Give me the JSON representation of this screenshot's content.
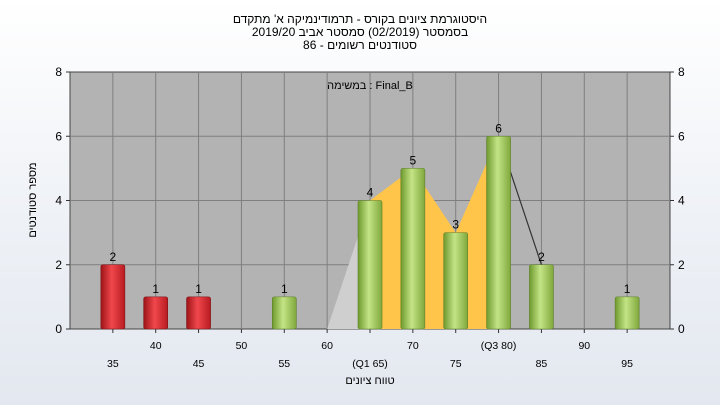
{
  "header": {
    "title_line1": "היסטוגרמת ציונים בקורס - תרמודינמיקה א' מתקדם",
    "title_line2": "בסמסטר  (02/2019)  סמסטר אביב 2019/20",
    "title_line3": "סטודנטים רשומים - 86"
  },
  "chart_data": {
    "type": "bar",
    "title": "היסטוגרמת ציונים בקורס - תרמודינמיקה א' מתקדם",
    "xlabel": "טווח ציונים",
    "ylabel": "מספר סטודנטים",
    "annotation": "במשימה : Final_B",
    "ylim": [
      0,
      8
    ],
    "y_ticks": [
      0,
      2,
      4,
      6,
      8
    ],
    "x_ticks": [
      {
        "x": 35,
        "label": "35"
      },
      {
        "x": 40,
        "label": "40"
      },
      {
        "x": 45,
        "label": "45"
      },
      {
        "x": 50,
        "label": "50"
      },
      {
        "x": 55,
        "label": "55"
      },
      {
        "x": 60,
        "label": "60"
      },
      {
        "x": 65,
        "label": "(Q1 65)"
      },
      {
        "x": 70,
        "label": "70"
      },
      {
        "x": 75,
        "label": "75"
      },
      {
        "x": 80,
        "label": "(Q3 80)"
      },
      {
        "x": 85,
        "label": "85"
      },
      {
        "x": 90,
        "label": "90"
      },
      {
        "x": 95,
        "label": "95"
      }
    ],
    "bars": [
      {
        "x": 35,
        "value": 2,
        "color": "red"
      },
      {
        "x": 40,
        "value": 1,
        "color": "red"
      },
      {
        "x": 45,
        "value": 1,
        "color": "red"
      },
      {
        "x": 55,
        "value": 1,
        "color": "green"
      },
      {
        "x": 65,
        "value": 4,
        "color": "green"
      },
      {
        "x": 70,
        "value": 5,
        "color": "green"
      },
      {
        "x": 75,
        "value": 3,
        "color": "green"
      },
      {
        "x": 80,
        "value": 6,
        "color": "green"
      },
      {
        "x": 85,
        "value": 2,
        "color": "green"
      },
      {
        "x": 95,
        "value": 1,
        "color": "green"
      }
    ],
    "grid": true,
    "colors": {
      "plot_bg": "#b3b3b3",
      "grid": "#7f7f7f",
      "red_bar": "#e8343a",
      "green_bar": "#9bc85a",
      "interquartile_area": "#ffc54a",
      "tail_area": "#cfcfcf"
    }
  }
}
